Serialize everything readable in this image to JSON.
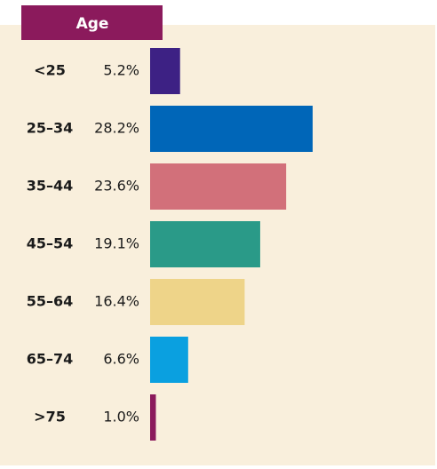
{
  "chart_data": {
    "type": "bar",
    "orientation": "horizontal",
    "title": "Age",
    "categories": [
      "<25",
      "25–34",
      "35–44",
      "45–54",
      "55–64",
      "65–74",
      ">75"
    ],
    "values": [
      5.2,
      28.2,
      23.6,
      19.1,
      16.4,
      6.6,
      1.0
    ],
    "value_labels": [
      "5.2%",
      "28.2%",
      "23.6%",
      "19.1%",
      "16.4%",
      "6.6%",
      "1.0%"
    ],
    "colors": [
      "#3d2184",
      "#0066b8",
      "#d2707a",
      "#2a9a88",
      "#eed489",
      "#0aa0e0",
      "#8b1a5c"
    ]
  }
}
